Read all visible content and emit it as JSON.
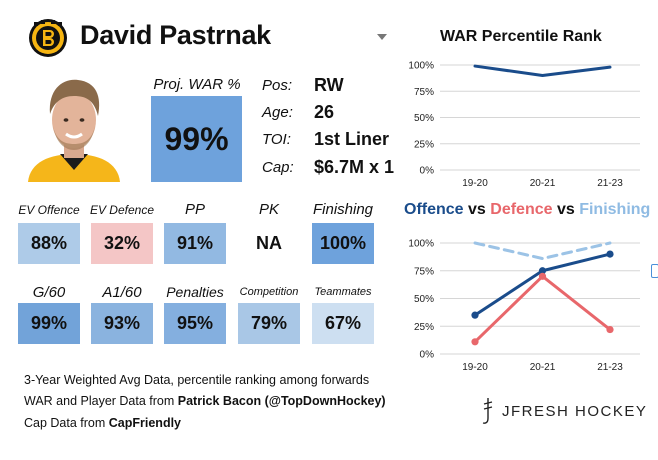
{
  "player": {
    "name": "David Pastrnak",
    "proj_war_label": "Proj. WAR %",
    "proj_war_value": "99%",
    "info": [
      {
        "label": "Pos:",
        "value": "RW"
      },
      {
        "label": "Age:",
        "value": "26"
      },
      {
        "label": "TOI:",
        "value": "1st Liner"
      },
      {
        "label": "Cap:",
        "value": "$6.7M x 1"
      }
    ]
  },
  "metrics": [
    {
      "label": "EV Offence",
      "value": "88%",
      "color": "#aecbe8"
    },
    {
      "label": "EV Defence",
      "value": "32%",
      "color": "#f4c6c6"
    },
    {
      "label": "PP",
      "value": "91%",
      "color": "#92b9e2"
    },
    {
      "label": "PK",
      "value": "NA",
      "color": "#ffffff"
    },
    {
      "label": "Finishing",
      "value": "100%",
      "color": "#6ea2dc"
    },
    {
      "label": "G/60",
      "value": "99%",
      "color": "#72a3d9"
    },
    {
      "label": "A1/60",
      "value": "93%",
      "color": "#8ab3df"
    },
    {
      "label": "Penalties",
      "value": "95%",
      "color": "#84afdf"
    },
    {
      "label": "Competition",
      "value": "79%",
      "color": "#a9c7e6"
    },
    {
      "label": "Teammates",
      "value": "67%",
      "color": "#cddff1"
    }
  ],
  "footnotes": {
    "line1": "3-Year Weighted Avg Data, percentile ranking among forwards",
    "line2_prefix": "WAR and Player Data from ",
    "line2_source": "Patrick Bacon (@TopDownHockey)",
    "line3_prefix": "Cap Data from ",
    "line3_source": "CapFriendly"
  },
  "brand": {
    "name": "JFRESH HOCKEY"
  },
  "chart_data": [
    {
      "type": "line",
      "title": "WAR Percentile Rank",
      "categories": [
        "19-20",
        "20-21",
        "21-23"
      ],
      "series": [
        {
          "values": [
            99,
            90,
            98
          ],
          "color": "#1a4c8b",
          "dashed": false
        }
      ],
      "y_ticks": [
        "0%",
        "25%",
        "50%",
        "75%",
        "100%"
      ],
      "ylim": [
        0,
        100
      ],
      "grid": true
    },
    {
      "type": "line",
      "title_parts": [
        {
          "text": "Offence",
          "color": "#1a4c8b"
        },
        {
          "text": " vs ",
          "color": "#111111"
        },
        {
          "text": "Defence",
          "color": "#e8676b"
        },
        {
          "text": " vs ",
          "color": "#111111"
        },
        {
          "text": "Finishing",
          "color": "#8fbbe3"
        }
      ],
      "categories": [
        "19-20",
        "20-21",
        "21-23"
      ],
      "series": [
        {
          "name": "Offence",
          "values": [
            35,
            75,
            90
          ],
          "color": "#1a4c8b",
          "dashed": false,
          "markers": true
        },
        {
          "name": "Defence",
          "values": [
            11,
            70,
            22
          ],
          "color": "#e8676b",
          "dashed": false,
          "markers": true
        },
        {
          "name": "Finishing",
          "values": [
            100,
            86,
            100
          ],
          "color": "#9cc3e6",
          "dashed": true,
          "markers": false
        }
      ],
      "y_ticks": [
        "0%",
        "25%",
        "50%",
        "75%",
        "100%"
      ],
      "ylim": [
        0,
        100
      ],
      "grid": true
    }
  ]
}
